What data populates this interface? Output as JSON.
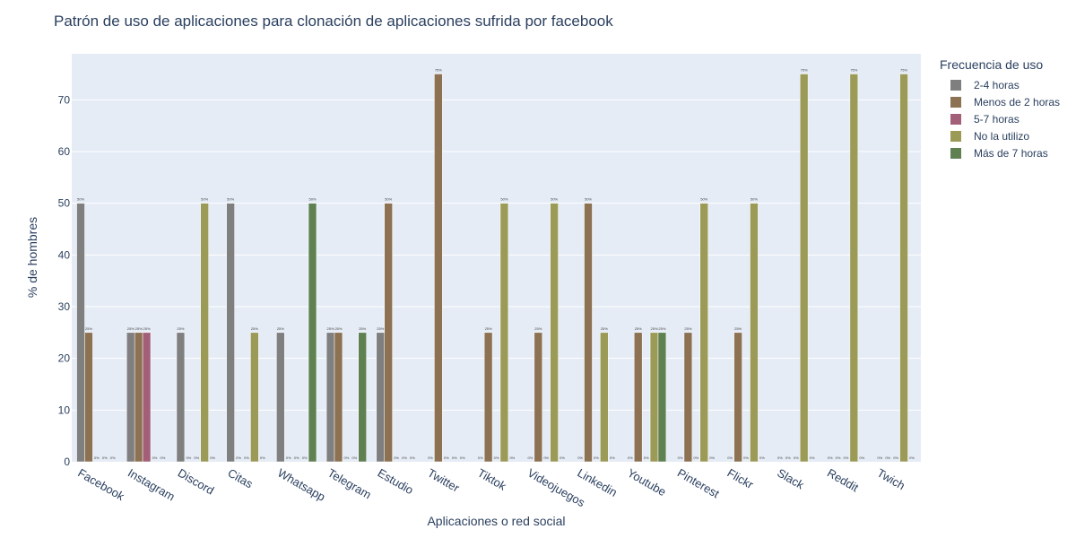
{
  "chart_data": {
    "type": "bar",
    "title": "Patrón de uso de aplicaciones para clonación de aplicaciones sufrida por facebook",
    "xlabel": "Aplicaciones o red social",
    "ylabel": "% de hombres",
    "ylim": [
      0,
      78.9
    ],
    "yticks": [
      0,
      10,
      20,
      30,
      40,
      50,
      60,
      70
    ],
    "grid": true,
    "legend_title": "Frecuencia de uso",
    "legend_position": "top-right",
    "categories": [
      "Facebook",
      "Instagram",
      "Discord",
      "Citas",
      "Whatsapp",
      "Telegram",
      "Estudio",
      "Twitter",
      "Tiktok",
      "Videojuegos",
      "Linkedin",
      "Youtube",
      "Pinterest",
      "Flickr",
      "Slack",
      "Reddit",
      "Twich"
    ],
    "series": [
      {
        "name": "2-4 horas",
        "color": "#7f7f7f",
        "values": [
          50,
          25,
          25,
          50,
          25,
          25,
          25,
          0,
          0,
          0,
          0,
          0,
          0,
          0,
          0,
          0,
          0
        ]
      },
      {
        "name": "Menos de 2 horas",
        "color": "#8c7152",
        "values": [
          25,
          25,
          0,
          0,
          0,
          25,
          50,
          75,
          25,
          25,
          50,
          25,
          25,
          25,
          0,
          0,
          0
        ]
      },
      {
        "name": "5-7 horas",
        "color": "#a35f77",
        "values": [
          0,
          25,
          0,
          0,
          0,
          0,
          0,
          0,
          0,
          0,
          0,
          0,
          0,
          0,
          0,
          0,
          0
        ]
      },
      {
        "name": "No la utilizo",
        "color": "#9c9a57",
        "values": [
          0,
          0,
          50,
          25,
          0,
          0,
          0,
          0,
          50,
          50,
          25,
          25,
          50,
          50,
          75,
          75,
          75
        ]
      },
      {
        "name": "Más de 7 horas",
        "color": "#5f8152",
        "values": [
          0,
          0,
          0,
          0,
          50,
          25,
          0,
          0,
          0,
          0,
          0,
          25,
          0,
          0,
          0,
          0,
          0
        ]
      }
    ],
    "value_label_suffix": "%"
  },
  "colors": {
    "plot_background": "#e5ecf6",
    "gridline": "#ffffff",
    "text": "#2a3f5f"
  }
}
